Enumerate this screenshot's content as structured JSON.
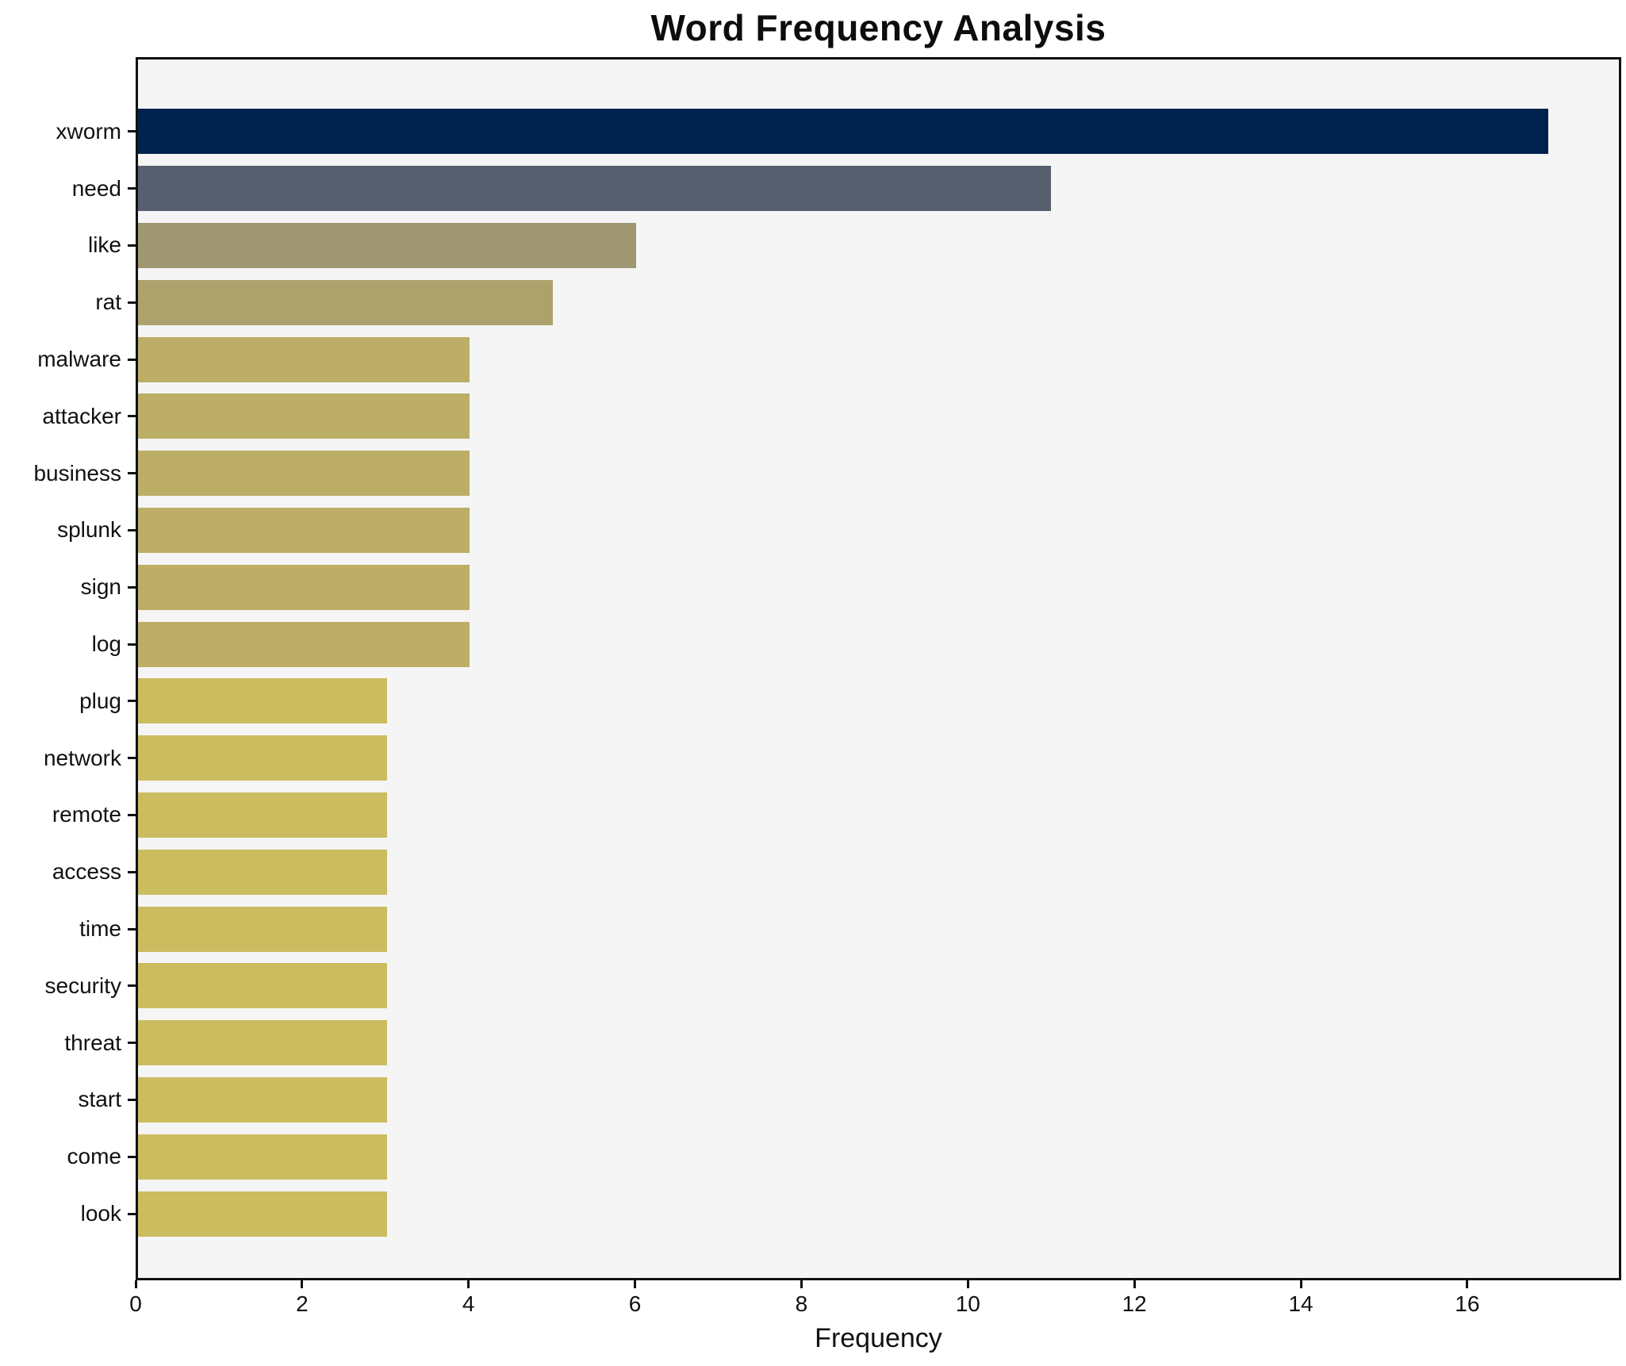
{
  "chart_data": {
    "type": "bar",
    "orientation": "horizontal",
    "title": "Word Frequency Analysis",
    "xlabel": "Frequency",
    "ylabel": "",
    "categories": [
      "xworm",
      "need",
      "like",
      "rat",
      "malware",
      "attacker",
      "business",
      "splunk",
      "sign",
      "log",
      "plug",
      "network",
      "remote",
      "access",
      "time",
      "security",
      "threat",
      "start",
      "come",
      "look"
    ],
    "values": [
      17,
      11,
      6,
      5,
      4,
      4,
      4,
      4,
      4,
      4,
      3,
      3,
      3,
      3,
      3,
      3,
      3,
      3,
      3,
      3
    ],
    "bar_colors": [
      "#00224e",
      "#575e6d",
      "#9e9772",
      "#ada26c",
      "#bcae66",
      "#bcae66",
      "#bcae66",
      "#bcae66",
      "#bcae66",
      "#bcae66",
      "#cbbc5f",
      "#cbbc5f",
      "#cbbc5f",
      "#cbbc5f",
      "#cbbc5f",
      "#cbbc5f",
      "#cbbc5f",
      "#cbbc5f",
      "#cbbc5f",
      "#cbbc5f"
    ],
    "x_ticks": [
      0,
      2,
      4,
      6,
      8,
      10,
      12,
      14,
      16
    ],
    "xlim": [
      0,
      17.85
    ],
    "grid": false,
    "legend": "none",
    "plot_background": "#f5f5f6",
    "figure_background": "#ffffff",
    "spine_color": "#111111",
    "colormap_note": "cividis-reversed shading from dark navy (high frequency) to khaki (low frequency)"
  }
}
